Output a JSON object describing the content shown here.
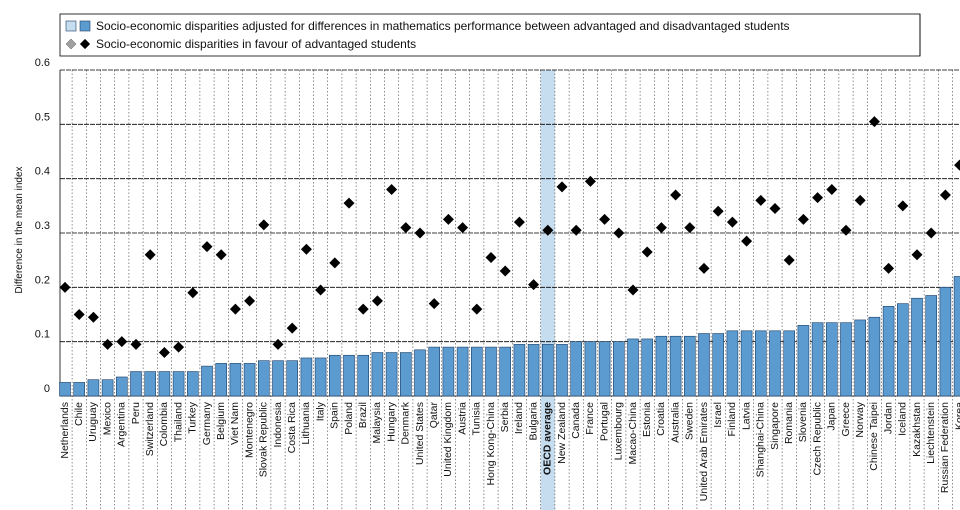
{
  "chart_data": {
    "type": "bar_dot",
    "y_axis_label": "Difference in the mean index",
    "categories": [
      "Netherlands",
      "Chile",
      "Uruguay",
      "Mexico",
      "Argentina",
      "Peru",
      "Switzerland",
      "Colombia",
      "Thailand",
      "Turkey",
      "Germany",
      "Belgium",
      "Viet Nam",
      "Montenegro",
      "Slovak Republic",
      "Indonesia",
      "Costa Rica",
      "Lithuania",
      "Italy",
      "Spain",
      "Poland",
      "Brazil",
      "Malaysia",
      "Hungary",
      "Denmark",
      "United States",
      "Qatar",
      "United Kingdom",
      "Austria",
      "Tunisia",
      "Hong Kong-China",
      "Serbia",
      "Ireland",
      "Bulgaria",
      "OECD average",
      "New Zealand",
      "Canada",
      "France",
      "Portugal",
      "Luxembourg",
      "Macao-China",
      "Estonia",
      "Croatia",
      "Australia",
      "Sweden",
      "United Arab Emirates",
      "Israel",
      "Finland",
      "Latvia",
      "Shanghai-China",
      "Singapore",
      "Romania",
      "Slovenia",
      "Czech Republic",
      "Japan",
      "Greece",
      "Norway",
      "Chinese Taipei",
      "Jordan",
      "Iceland",
      "Kazakhstan",
      "Liechtenstein",
      "Russian Federation",
      "Korea"
    ],
    "category_colors": [
      "#000",
      "#000",
      "#2a5ca8",
      "#000",
      "#2a5ca8",
      "#2a5ca8",
      "#000",
      "#2a5ca8",
      "#2a5ca8",
      "#000",
      "#000",
      "#000",
      "#2a5ca8",
      "#2a5ca8",
      "#000",
      "#2a5ca8",
      "#2a5ca8",
      "#2a5ca8",
      "#000",
      "#000",
      "#000",
      "#2a5ca8",
      "#2a5ca8",
      "#000",
      "#000",
      "#000",
      "#2a5ca8",
      "#000",
      "#000",
      "#2a5ca8",
      "#2a5ca8",
      "#2a5ca8",
      "#000",
      "#2a5ca8",
      "#000",
      "#000",
      "#000",
      "#000",
      "#000",
      "#000",
      "#2a5ca8",
      "#000",
      "#2a5ca8",
      "#000",
      "#000",
      "#2a5ca8",
      "#000",
      "#000",
      "#2a5ca8",
      "#2a5ca8",
      "#2a5ca8",
      "#2a5ca8",
      "#000",
      "#000",
      "#000",
      "#000",
      "#000",
      "#2a5ca8",
      "#2a5ca8",
      "#000",
      "#2a5ca8",
      "#2a5ca8",
      "#2a5ca8",
      "#000"
    ],
    "highlight": "OECD average",
    "highlight_color": "#c6dcef",
    "series": [
      {
        "name": "Socio-economic disparities adjusted for differences in mathematics performance between advantaged and disadvantaged students",
        "mark": "bar",
        "color": "#5b9bd0",
        "legend_light": "#c6dcef",
        "values": [
          0.025,
          0.025,
          0.03,
          0.03,
          0.035,
          0.045,
          0.045,
          0.045,
          0.045,
          0.045,
          0.055,
          0.06,
          0.06,
          0.06,
          0.065,
          0.065,
          0.065,
          0.07,
          0.07,
          0.075,
          0.075,
          0.075,
          0.08,
          0.08,
          0.08,
          0.085,
          0.09,
          0.09,
          0.09,
          0.09,
          0.09,
          0.09,
          0.095,
          0.095,
          0.095,
          0.095,
          0.1,
          0.1,
          0.1,
          0.1,
          0.105,
          0.105,
          0.11,
          0.11,
          0.11,
          0.115,
          0.115,
          0.12,
          0.12,
          0.12,
          0.12,
          0.12,
          0.13,
          0.135,
          0.135,
          0.135,
          0.14,
          0.145,
          0.165,
          0.17,
          0.18,
          0.185,
          0.2,
          0.22
        ]
      },
      {
        "name": "Socio-economic disparities in favour of advantaged students",
        "mark": "diamond",
        "color": "#000",
        "legend_light": "#a0a0a0",
        "values": [
          0.2,
          0.15,
          0.145,
          0.095,
          0.1,
          0.095,
          0.26,
          0.08,
          0.09,
          0.19,
          0.275,
          0.26,
          0.16,
          0.175,
          0.315,
          0.095,
          0.125,
          0.27,
          0.195,
          0.245,
          0.355,
          0.16,
          0.175,
          0.38,
          0.31,
          0.3,
          0.17,
          0.325,
          0.31,
          0.16,
          0.255,
          0.23,
          0.32,
          0.205,
          0.305,
          0.385,
          0.305,
          0.395,
          0.325,
          0.3,
          0.195,
          0.265,
          0.31,
          0.37,
          0.31,
          0.235,
          0.34,
          0.32,
          0.285,
          0.36,
          0.345,
          0.25,
          0.325,
          0.365,
          0.38,
          0.305,
          0.36,
          0.505,
          0.235,
          0.35,
          0.26,
          0.3,
          0.37,
          0.425
        ]
      }
    ],
    "ylim": [
      0,
      0.6
    ],
    "yticks": [
      0,
      0.1,
      0.2,
      0.3,
      0.4,
      0.5,
      0.6
    ],
    "grid": true
  }
}
